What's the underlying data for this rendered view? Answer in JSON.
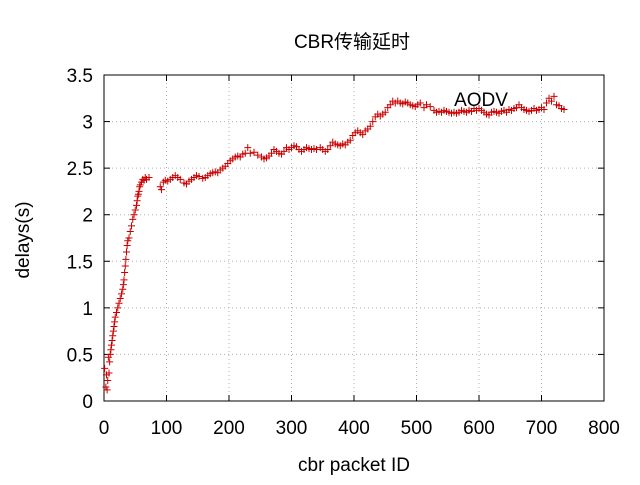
{
  "chart_data": {
    "type": "scatter",
    "title": "CBR传输延时",
    "xlabel": "cbr packet ID",
    "ylabel": "delays(s)",
    "xlim": [
      0,
      800
    ],
    "ylim": [
      0,
      3.5
    ],
    "x_ticks": [
      0,
      100,
      200,
      300,
      400,
      500,
      600,
      700,
      800
    ],
    "x_tick_labels": [
      "0",
      "100",
      "200",
      "300",
      "400",
      "500",
      "600",
      "700",
      "800"
    ],
    "y_ticks": [
      0,
      0.5,
      1,
      1.5,
      2,
      2.5,
      3,
      3.5
    ],
    "y_tick_labels": [
      "0",
      "0.5",
      "1",
      "1.5",
      "2",
      "2.5",
      "3",
      "3.5"
    ],
    "grid": true,
    "legend_position": "top-right",
    "series": [
      {
        "name": "AODV",
        "color": "#cc0000",
        "marker": "plus",
        "points": [
          [
            1,
            0.35
          ],
          [
            3,
            0.15
          ],
          [
            4,
            0.28
          ],
          [
            5,
            0.12
          ],
          [
            6,
            0.22
          ],
          [
            7,
            0.47
          ],
          [
            8,
            0.3
          ],
          [
            9,
            0.42
          ],
          [
            10,
            0.5
          ],
          [
            11,
            0.55
          ],
          [
            12,
            0.6
          ],
          [
            13,
            0.65
          ],
          [
            14,
            0.7
          ],
          [
            15,
            0.75
          ],
          [
            16,
            0.8
          ],
          [
            17,
            0.85
          ],
          [
            18,
            0.9
          ],
          [
            20,
            0.95
          ],
          [
            22,
            1.0
          ],
          [
            24,
            1.05
          ],
          [
            26,
            1.1
          ],
          [
            28,
            1.15
          ],
          [
            30,
            1.2
          ],
          [
            31,
            1.25
          ],
          [
            32,
            1.3
          ],
          [
            33,
            1.38
          ],
          [
            34,
            1.45
          ],
          [
            35,
            1.52
          ],
          [
            36,
            1.6
          ],
          [
            37,
            1.67
          ],
          [
            38,
            1.72
          ],
          [
            40,
            1.75
          ],
          [
            42,
            1.82
          ],
          [
            44,
            1.88
          ],
          [
            46,
            1.95
          ],
          [
            48,
            2.0
          ],
          [
            50,
            2.05
          ],
          [
            52,
            2.1
          ],
          [
            53,
            2.15
          ],
          [
            54,
            2.2
          ],
          [
            55,
            2.22
          ],
          [
            56,
            2.25
          ],
          [
            57,
            2.3
          ],
          [
            58,
            2.32
          ],
          [
            60,
            2.35
          ],
          [
            62,
            2.38
          ],
          [
            64,
            2.37
          ],
          [
            66,
            2.4
          ],
          [
            68,
            2.38
          ],
          [
            72,
            2.4
          ],
          [
            90,
            2.3
          ],
          [
            92,
            2.27
          ],
          [
            95,
            2.35
          ],
          [
            98,
            2.37
          ],
          [
            102,
            2.36
          ],
          [
            106,
            2.38
          ],
          [
            110,
            2.4
          ],
          [
            114,
            2.42
          ],
          [
            118,
            2.4
          ],
          [
            122,
            2.38
          ],
          [
            128,
            2.34
          ],
          [
            132,
            2.33
          ],
          [
            136,
            2.36
          ],
          [
            140,
            2.38
          ],
          [
            144,
            2.4
          ],
          [
            148,
            2.42
          ],
          [
            152,
            2.41
          ],
          [
            158,
            2.39
          ],
          [
            162,
            2.4
          ],
          [
            166,
            2.42
          ],
          [
            170,
            2.44
          ],
          [
            174,
            2.45
          ],
          [
            178,
            2.46
          ],
          [
            182,
            2.45
          ],
          [
            186,
            2.48
          ],
          [
            190,
            2.5
          ],
          [
            194,
            2.52
          ],
          [
            198,
            2.55
          ],
          [
            202,
            2.58
          ],
          [
            206,
            2.6
          ],
          [
            210,
            2.62
          ],
          [
            214,
            2.63
          ],
          [
            218,
            2.62
          ],
          [
            222,
            2.65
          ],
          [
            226,
            2.66
          ],
          [
            230,
            2.72
          ],
          [
            234,
            2.66
          ],
          [
            240,
            2.67
          ],
          [
            246,
            2.64
          ],
          [
            252,
            2.62
          ],
          [
            256,
            2.6
          ],
          [
            260,
            2.61
          ],
          [
            264,
            2.63
          ],
          [
            268,
            2.66
          ],
          [
            272,
            2.7
          ],
          [
            276,
            2.68
          ],
          [
            280,
            2.66
          ],
          [
            284,
            2.65
          ],
          [
            288,
            2.68
          ],
          [
            292,
            2.72
          ],
          [
            296,
            2.7
          ],
          [
            300,
            2.72
          ],
          [
            304,
            2.74
          ],
          [
            308,
            2.73
          ],
          [
            312,
            2.7
          ],
          [
            316,
            2.68
          ],
          [
            320,
            2.7
          ],
          [
            324,
            2.72
          ],
          [
            328,
            2.71
          ],
          [
            332,
            2.7
          ],
          [
            336,
            2.71
          ],
          [
            340,
            2.7
          ],
          [
            346,
            2.72
          ],
          [
            350,
            2.7
          ],
          [
            354,
            2.68
          ],
          [
            358,
            2.7
          ],
          [
            362,
            2.74
          ],
          [
            366,
            2.78
          ],
          [
            370,
            2.76
          ],
          [
            374,
            2.75
          ],
          [
            378,
            2.74
          ],
          [
            382,
            2.76
          ],
          [
            386,
            2.75
          ],
          [
            390,
            2.78
          ],
          [
            394,
            2.8
          ],
          [
            398,
            2.85
          ],
          [
            402,
            2.88
          ],
          [
            406,
            2.9
          ],
          [
            410,
            2.88
          ],
          [
            414,
            2.86
          ],
          [
            418,
            2.9
          ],
          [
            422,
            2.92
          ],
          [
            426,
            2.95
          ],
          [
            430,
            3.0
          ],
          [
            434,
            3.05
          ],
          [
            438,
            3.08
          ],
          [
            442,
            3.06
          ],
          [
            446,
            3.08
          ],
          [
            450,
            3.1
          ],
          [
            454,
            3.15
          ],
          [
            458,
            3.18
          ],
          [
            462,
            3.22
          ],
          [
            466,
            3.2
          ],
          [
            470,
            3.22
          ],
          [
            474,
            3.2
          ],
          [
            478,
            3.19
          ],
          [
            482,
            3.21
          ],
          [
            486,
            3.2
          ],
          [
            490,
            3.18
          ],
          [
            494,
            3.17
          ],
          [
            498,
            3.16
          ],
          [
            502,
            3.18
          ],
          [
            506,
            3.2
          ],
          [
            512,
            3.15
          ],
          [
            516,
            3.18
          ],
          [
            522,
            3.16
          ],
          [
            528,
            3.12
          ],
          [
            532,
            3.1
          ],
          [
            536,
            3.11
          ],
          [
            540,
            3.1
          ],
          [
            544,
            3.12
          ],
          [
            548,
            3.11
          ],
          [
            552,
            3.1
          ],
          [
            556,
            3.09
          ],
          [
            560,
            3.1
          ],
          [
            564,
            3.09
          ],
          [
            568,
            3.1
          ],
          [
            572,
            3.12
          ],
          [
            576,
            3.11
          ],
          [
            580,
            3.1
          ],
          [
            584,
            3.12
          ],
          [
            588,
            3.11
          ],
          [
            592,
            3.14
          ],
          [
            596,
            3.12
          ],
          [
            600,
            3.14
          ],
          [
            604,
            3.12
          ],
          [
            608,
            3.1
          ],
          [
            612,
            3.08
          ],
          [
            616,
            3.07
          ],
          [
            620,
            3.1
          ],
          [
            624,
            3.11
          ],
          [
            628,
            3.1
          ],
          [
            632,
            3.09
          ],
          [
            636,
            3.11
          ],
          [
            640,
            3.12
          ],
          [
            644,
            3.1
          ],
          [
            648,
            3.13
          ],
          [
            652,
            3.12
          ],
          [
            656,
            3.14
          ],
          [
            660,
            3.15
          ],
          [
            664,
            3.18
          ],
          [
            668,
            3.15
          ],
          [
            672,
            3.13
          ],
          [
            676,
            3.12
          ],
          [
            680,
            3.11
          ],
          [
            684,
            3.12
          ],
          [
            688,
            3.14
          ],
          [
            692,
            3.12
          ],
          [
            696,
            3.13
          ],
          [
            700,
            3.15
          ],
          [
            704,
            3.13
          ],
          [
            708,
            3.2
          ],
          [
            712,
            3.25
          ],
          [
            716,
            3.22
          ],
          [
            720,
            3.27
          ],
          [
            724,
            3.18
          ],
          [
            728,
            3.17
          ],
          [
            732,
            3.14
          ],
          [
            736,
            3.13
          ]
        ]
      }
    ]
  }
}
